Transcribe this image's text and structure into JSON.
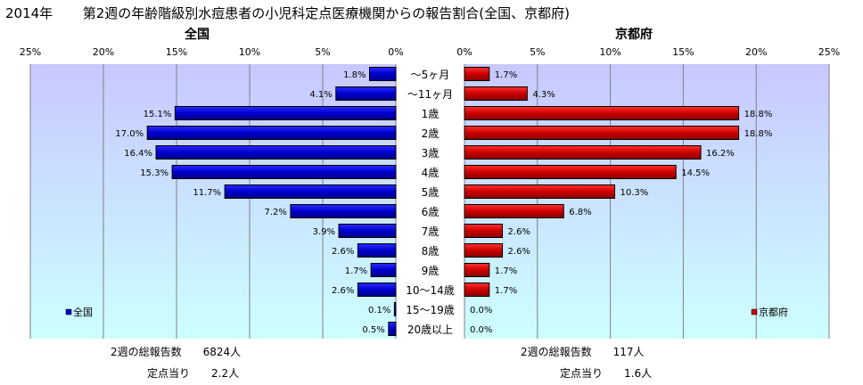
{
  "header": {
    "year": "2014年",
    "title": "第2週の年齢階級別水痘患者の小児科定点医療機関からの報告割合(全国、京都府)"
  },
  "chart_data": {
    "type": "bar",
    "orientation": "horizontal",
    "categories": [
      "～5ヶ月",
      "～11ヶ月",
      "1歳",
      "2歳",
      "3歳",
      "4歳",
      "5歳",
      "6歳",
      "7歳",
      "8歳",
      "9歳",
      "10～14歳",
      "15～19歳",
      "20歳以上"
    ],
    "xlim": [
      0,
      25
    ],
    "x_ticks": [
      "25%",
      "20%",
      "15%",
      "10%",
      "5%",
      "0%"
    ],
    "x_ticks_right": [
      "0%",
      "5%",
      "10%",
      "15%",
      "20%",
      "25%"
    ],
    "grid": true,
    "series": [
      {
        "name": "全国",
        "panel_title": "全国",
        "color": "#0000cc",
        "values": [
          1.8,
          4.1,
          15.1,
          17.0,
          16.4,
          15.3,
          11.7,
          7.2,
          3.9,
          2.6,
          1.7,
          2.6,
          0.1,
          0.5
        ],
        "labels": [
          "1.8%",
          "4.1%",
          "15.1%",
          "17.0%",
          "16.4%",
          "15.3%",
          "11.7%",
          "7.2%",
          "3.9%",
          "2.6%",
          "1.7%",
          "2.6%",
          "0.1%",
          "0.5%"
        ]
      },
      {
        "name": "京都府",
        "panel_title": "京都府",
        "color": "#cc0000",
        "values": [
          1.7,
          4.3,
          18.8,
          18.8,
          16.2,
          14.5,
          10.3,
          6.8,
          2.6,
          2.6,
          1.7,
          1.7,
          0.0,
          0.0
        ],
        "labels": [
          "1.7%",
          "4.3%",
          "18.8%",
          "18.8%",
          "16.2%",
          "14.5%",
          "10.3%",
          "6.8%",
          "2.6%",
          "2.6%",
          "1.7%",
          "1.7%",
          "0.0%",
          "0.0%"
        ]
      }
    ]
  },
  "stats": {
    "national_total": "2週の総報告数　　6824人",
    "national_per_site": "定点当り　　2.2人",
    "kyoto_total": "2週の総報告数　　117人",
    "kyoto_per_site": "定点当り　　1.6人"
  },
  "colors": {
    "panel_top": "#c8c8ff",
    "panel_bottom": "#ccffff",
    "national_bar": "#0000cc",
    "kyoto_bar": "#cc0000"
  }
}
